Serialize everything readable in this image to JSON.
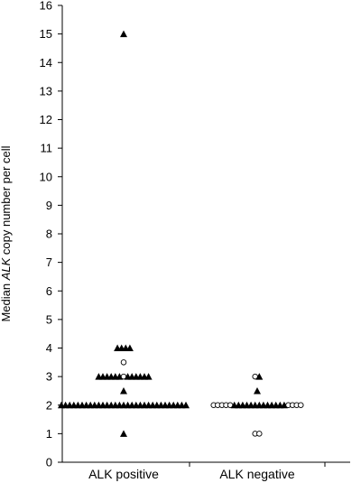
{
  "chart_data": {
    "type": "scatter",
    "title": "",
    "ylabel_parts": [
      "Median ",
      "ALK",
      " copy number per cell"
    ],
    "ylim": [
      0,
      16
    ],
    "yticks": [
      "0",
      "1",
      "2",
      "3",
      "4",
      "5",
      "6",
      "7",
      "8",
      "9",
      "10",
      "11",
      "12",
      "13",
      "14",
      "15",
      "16"
    ],
    "categories": [
      "ALK positive",
      "ALK negative"
    ],
    "grid": false,
    "series": [
      {
        "marker": "triangle",
        "color": "#000000",
        "groups": [
          {
            "category": "ALK positive",
            "y": [
              15,
              4,
              4,
              4,
              4,
              3,
              3,
              3,
              3,
              3,
              3,
              3,
              3,
              3,
              3,
              3,
              3,
              2.5,
              2,
              2,
              2,
              2,
              2,
              2,
              2,
              2,
              2,
              2,
              2,
              2,
              2,
              2,
              2,
              2,
              2,
              2,
              2,
              2,
              2,
              2,
              2,
              2,
              2,
              2,
              2,
              2,
              2,
              2,
              2,
              1
            ]
          },
          {
            "category": "ALK negative",
            "y": [
              3,
              2.5,
              2,
              2,
              2,
              2,
              2,
              2,
              2,
              2,
              2,
              2,
              2,
              2,
              2
            ]
          }
        ]
      },
      {
        "marker": "circle-open",
        "color": "#000000",
        "groups": [
          {
            "category": "ALK positive",
            "y": [
              3.5,
              3
            ]
          },
          {
            "category": "ALK negative",
            "y": [
              3,
              2,
              2,
              2,
              2,
              2,
              2,
              2,
              2,
              2,
              1,
              1
            ]
          }
        ]
      }
    ]
  }
}
